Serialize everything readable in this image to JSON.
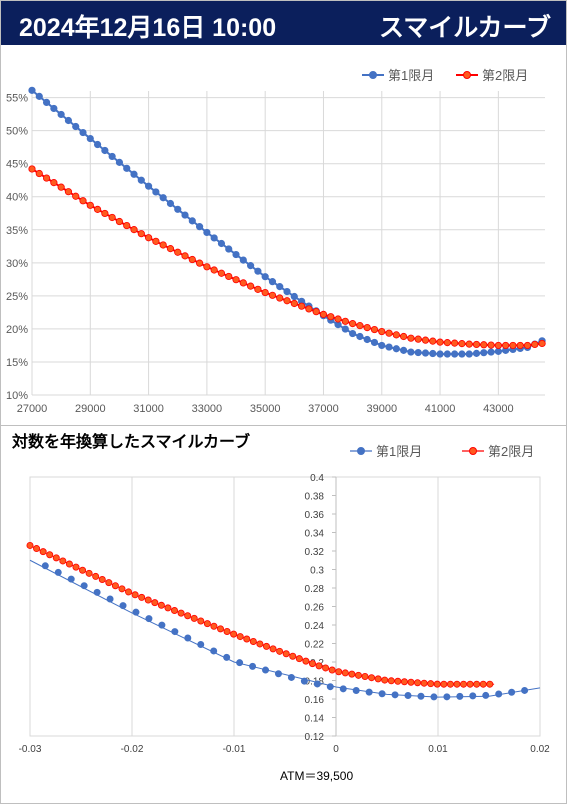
{
  "header": {
    "datetime": "2024年12月16日 10:00",
    "title": "スマイルカーブ"
  },
  "colors": {
    "header_bg": "#0b1f5c",
    "series1": "#4472c4",
    "series2": "#ff0000",
    "series2_marker_fill": "#ff5a1f",
    "grid": "#d9d9d9"
  },
  "chart_data": [
    {
      "type": "line",
      "title": "",
      "legend_position": "top-right",
      "xlim": [
        27000,
        44600
      ],
      "ylim": [
        0.1,
        0.56
      ],
      "x_ticks": [
        27000,
        29000,
        31000,
        33000,
        35000,
        37000,
        39000,
        41000,
        43000
      ],
      "x_tick_labels": [
        "27000",
        "29000",
        "31000",
        "33000",
        "35000",
        "37000",
        "39000",
        "41000",
        "43000"
      ],
      "y_ticks": [
        0.1,
        0.15,
        0.2,
        0.25,
        0.3,
        0.35,
        0.4,
        0.45,
        0.5,
        0.55
      ],
      "y_tick_labels": [
        "10%",
        "15%",
        "20%",
        "25%",
        "30%",
        "35%",
        "40%",
        "45%",
        "50%",
        "55%"
      ],
      "grid": true,
      "series": [
        {
          "name": "第1限月",
          "x_range": [
            27000,
            44500
          ],
          "x_step": 250,
          "y_knots": [
            [
              27000,
              0.561
            ],
            [
              29000,
              0.488
            ],
            [
              31000,
              0.416
            ],
            [
              33000,
              0.346
            ],
            [
              35000,
              0.279
            ],
            [
              36000,
              0.249
            ],
            [
              37000,
              0.22
            ],
            [
              38000,
              0.193
            ],
            [
              39000,
              0.175
            ],
            [
              40000,
              0.165
            ],
            [
              41000,
              0.162
            ],
            [
              42000,
              0.162
            ],
            [
              43000,
              0.166
            ],
            [
              44000,
              0.172
            ],
            [
              44500,
              0.182
            ]
          ]
        },
        {
          "name": "第2限月",
          "x_range": [
            27000,
            44500
          ],
          "x_step": 250,
          "y_knots": [
            [
              27000,
              0.442
            ],
            [
              29000,
              0.387
            ],
            [
              31000,
              0.338
            ],
            [
              33000,
              0.294
            ],
            [
              35000,
              0.255
            ],
            [
              37000,
              0.222
            ],
            [
              38000,
              0.208
            ],
            [
              39000,
              0.196
            ],
            [
              40000,
              0.186
            ],
            [
              41000,
              0.18
            ],
            [
              42000,
              0.177
            ],
            [
              43000,
              0.175
            ],
            [
              44000,
              0.175
            ],
            [
              44500,
              0.178
            ]
          ]
        }
      ]
    },
    {
      "type": "line",
      "title": "対数を年換算したスマイルカーブ",
      "legend_position": "top-right",
      "xlim": [
        -0.03,
        0.02
      ],
      "ylim": [
        0.12,
        0.4
      ],
      "x_ticks": [
        -0.03,
        -0.02,
        -0.01,
        0,
        0.01,
        0.02
      ],
      "x_tick_labels": [
        "-0.03",
        "-0.02",
        "-0.01",
        "0",
        "0.01",
        "0.02"
      ],
      "y_ticks": [
        0.12,
        0.14,
        0.16,
        0.18,
        0.2,
        0.22,
        0.24,
        0.26,
        0.28,
        0.3,
        0.32,
        0.34,
        0.36,
        0.38,
        0.4
      ],
      "y_tick_labels": [
        "0.12",
        "0.14",
        "0.16",
        "0.18",
        "0.2",
        "0.22",
        "0.24",
        "0.26",
        "0.28",
        "0.3",
        "0.32",
        "0.34",
        "0.36",
        "0.38",
        "0.4"
      ],
      "grid": true,
      "xlabel": "ATM＝39,500",
      "series": [
        {
          "name": "第1限月",
          "line_knots": [
            [
              -0.03,
              0.31
            ],
            [
              -0.02,
              0.253
            ],
            [
              -0.01,
              0.2
            ],
            [
              0,
              0.173
            ],
            [
              0.005,
              0.165
            ],
            [
              0.01,
              0.162
            ],
            [
              0.015,
              0.163
            ],
            [
              0.02,
              0.172
            ]
          ],
          "marker_range": [
            -0.0285,
            0.019
          ],
          "marker_step": 0.00127,
          "y_knots": [
            [
              -0.0285,
              0.304
            ],
            [
              -0.02,
              0.256
            ],
            [
              -0.01,
              0.201
            ],
            [
              -0.003,
              0.179
            ],
            [
              0,
              0.172
            ],
            [
              0.005,
              0.165
            ],
            [
              0.01,
              0.162
            ],
            [
              0.015,
              0.164
            ],
            [
              0.019,
              0.17
            ]
          ]
        },
        {
          "name": "第2限月",
          "line_knots": [
            [
              -0.03,
              0.326
            ],
            [
              -0.02,
              0.274
            ],
            [
              -0.01,
              0.23
            ],
            [
              0,
              0.19
            ],
            [
              0.005,
              0.18
            ],
            [
              0.01,
              0.176
            ],
            [
              0.0155,
              0.176
            ]
          ],
          "marker_range": [
            -0.03,
            0.0155
          ],
          "marker_step": 0.000644,
          "y_knots": [
            [
              -0.03,
              0.326
            ],
            [
              -0.02,
              0.274
            ],
            [
              -0.01,
              0.23
            ],
            [
              -0.002,
              0.197
            ],
            [
              0,
              0.19
            ],
            [
              0.005,
              0.18
            ],
            [
              0.01,
              0.176
            ],
            [
              0.0155,
              0.176
            ]
          ]
        }
      ]
    }
  ]
}
